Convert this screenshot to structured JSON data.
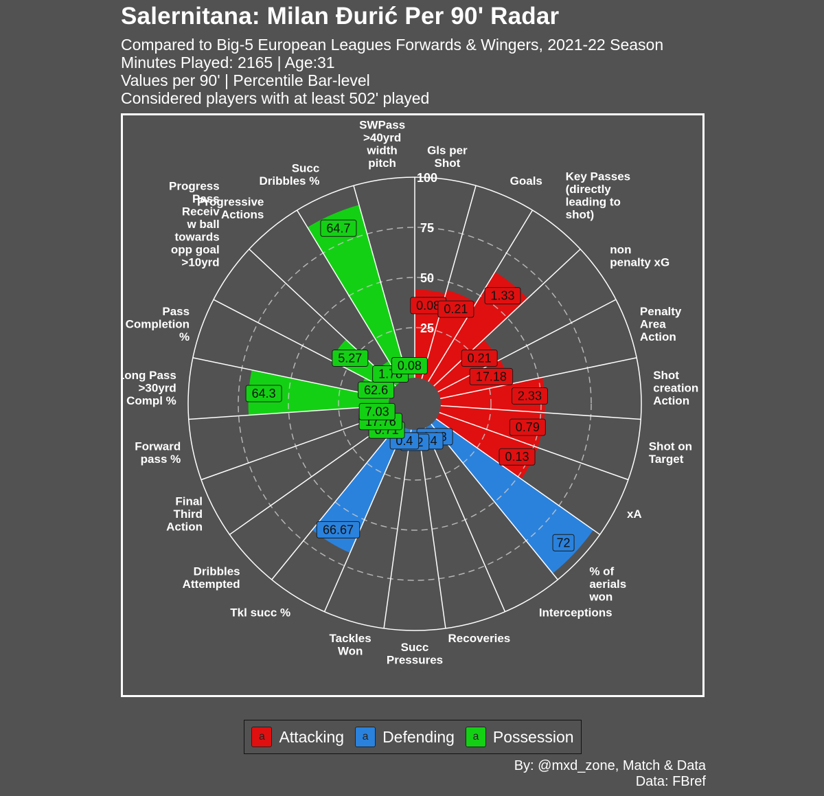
{
  "title": "Salernitana: Milan Đurić Per 90' Radar",
  "subtitles": [
    "Compared to Big-5 European Leagues Forwards & Wingers, 2021-22 Season",
    "Minutes Played: 2165 | Age:31",
    "Values per 90' | Percentile Bar-level",
    "Considered players with at least 502' played"
  ],
  "caption": [
    "By: @mxd_zone, Match & Data",
    "Data: FBref"
  ],
  "colors": {
    "background": "#525252",
    "attacking": "#e01010",
    "defending": "#2a82dd",
    "possession": "#14d014",
    "grid": "#ffffff"
  },
  "legend": [
    {
      "key": "a",
      "label": "Attacking",
      "group": "attacking"
    },
    {
      "key": "a",
      "label": "Defending",
      "group": "defending"
    },
    {
      "key": "a",
      "label": "Possession",
      "group": "possession"
    }
  ],
  "chart_data": {
    "type": "radar-bar",
    "ylim": [
      0,
      100
    ],
    "rings": [
      25,
      50,
      75,
      100
    ],
    "ring_labels": [
      "25",
      "50",
      "75",
      "100"
    ],
    "grid": true,
    "legend_position": "bottom",
    "stats": [
      {
        "label": "Gls per\nShot",
        "value": "0.08",
        "percentile": 44,
        "group": "attacking"
      },
      {
        "label": "Goals",
        "value": "0.21",
        "percentile": 46,
        "group": "attacking"
      },
      {
        "label": "Key Passes\n(directly\nleading to\nshot)",
        "value": "1.33",
        "percentile": 64,
        "group": "attacking"
      },
      {
        "label": "non\npenalty xG",
        "value": "0.21",
        "percentile": 34,
        "group": "attacking"
      },
      {
        "label": "Penalty\nArea\nAction",
        "value": "17.18",
        "percentile": 35,
        "group": "attacking"
      },
      {
        "label": "Shot\ncreation\nAction",
        "value": "2.33",
        "percentile": 52,
        "group": "attacking"
      },
      {
        "label": "Shot on\nTarget",
        "value": "0.79",
        "percentile": 52,
        "group": "attacking"
      },
      {
        "label": "xA",
        "value": "0.13",
        "percentile": 52,
        "group": "attacking"
      },
      {
        "label": "% of\naerials\nwon",
        "value": "72",
        "percentile": 96,
        "group": "defending"
      },
      {
        "label": "Interceptions",
        "value": "0.08",
        "percentile": 5,
        "group": "defending"
      },
      {
        "label": "Recoveries",
        "value": "3.24",
        "percentile": 4,
        "group": "defending"
      },
      {
        "label": "Succ\nPressures",
        "value": "0.2",
        "percentile": 3,
        "group": "defending"
      },
      {
        "label": "Tackles\nWon",
        "value": "0.4",
        "percentile": 3,
        "group": "defending"
      },
      {
        "label": "Tkl succ %",
        "value": "66.67",
        "percentile": 68,
        "group": "defending"
      },
      {
        "label": "Dribbles\nAttempted",
        "value": "0.71",
        "percentile": 5,
        "group": "possession"
      },
      {
        "label": "Final\nThird\nAction",
        "value": "17.76",
        "percentile": 9,
        "group": "possession"
      },
      {
        "label": "Forward\npass %",
        "value": "7.03",
        "percentile": 9,
        "group": "possession"
      },
      {
        "label": "Long Pass\n>30yrd\nCompl %",
        "value": "64.3",
        "percentile": 70,
        "group": "possession"
      },
      {
        "label": "Pass\nCompletion\n%",
        "value": "62.6",
        "percentile": 15,
        "group": "possession"
      },
      {
        "label": "Progress\nPass\nReceiv\nw ball\ntowards\nopp goal\n>10yrd",
        "value": "5.27",
        "percentile": 34,
        "group": "possession"
      },
      {
        "label": "Progressive\nActions",
        "value": "1.78",
        "percentile": 12,
        "group": "possession"
      },
      {
        "label": "Succ\nDribbles %",
        "value": "64.7",
        "percentile": 90,
        "group": "possession"
      },
      {
        "label": "SWPass\n>40yrd\nwidth\npitch",
        "value": "0.08",
        "percentile": 5,
        "group": "possession"
      }
    ]
  }
}
